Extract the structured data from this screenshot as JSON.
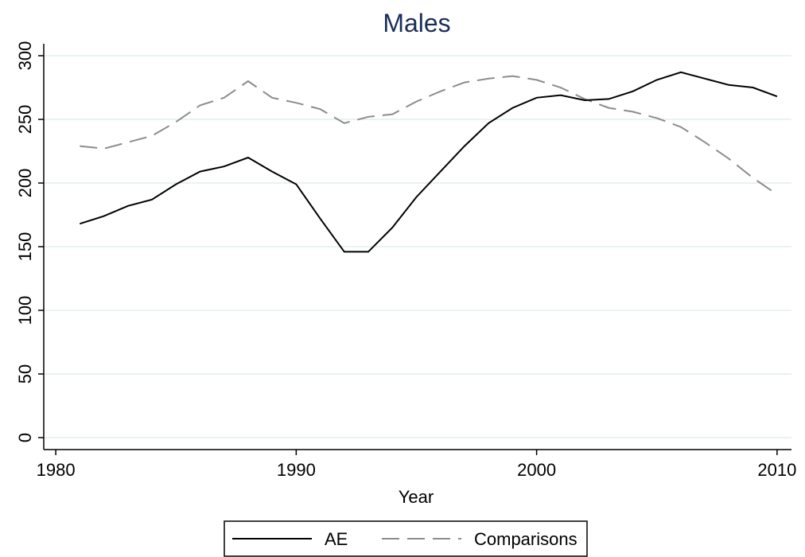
{
  "chart_data": {
    "type": "line",
    "title": "Males",
    "x_label": "Year",
    "x": [
      1981,
      1982,
      1983,
      1984,
      1985,
      1986,
      1987,
      1988,
      1989,
      1990,
      1991,
      1992,
      1993,
      1994,
      1995,
      1996,
      1997,
      1998,
      1999,
      2000,
      2001,
      2002,
      2003,
      2004,
      2005,
      2006,
      2007,
      2008,
      2009,
      2010
    ],
    "series": [
      {
        "name": "AE",
        "color": "#000000",
        "style": "solid",
        "values": [
          168,
          174,
          182,
          187,
          199,
          209,
          213,
          220,
          209,
          199,
          172,
          146,
          146,
          165,
          189,
          209,
          229,
          247,
          259,
          267,
          269,
          265,
          266,
          272,
          281,
          287,
          282,
          277,
          275,
          268
        ]
      },
      {
        "name": "Comparisons",
        "color": "#8c8c8c",
        "style": "dashed",
        "values": [
          229,
          227,
          232,
          237,
          248,
          261,
          267,
          280,
          267,
          263,
          258,
          247,
          252,
          254,
          264,
          272,
          279,
          282,
          284,
          281,
          275,
          266,
          259,
          256,
          251,
          244,
          232,
          219,
          204,
          191
        ]
      }
    ],
    "xlim": [
      1979.5,
      2010.6
    ],
    "xticks": [
      1980,
      1990,
      2000,
      2010
    ],
    "ylim": [
      -9.4,
      309.4
    ],
    "yticks": [
      0,
      50,
      100,
      150,
      200,
      250,
      300
    ],
    "grid": true,
    "legend": "bottom"
  }
}
